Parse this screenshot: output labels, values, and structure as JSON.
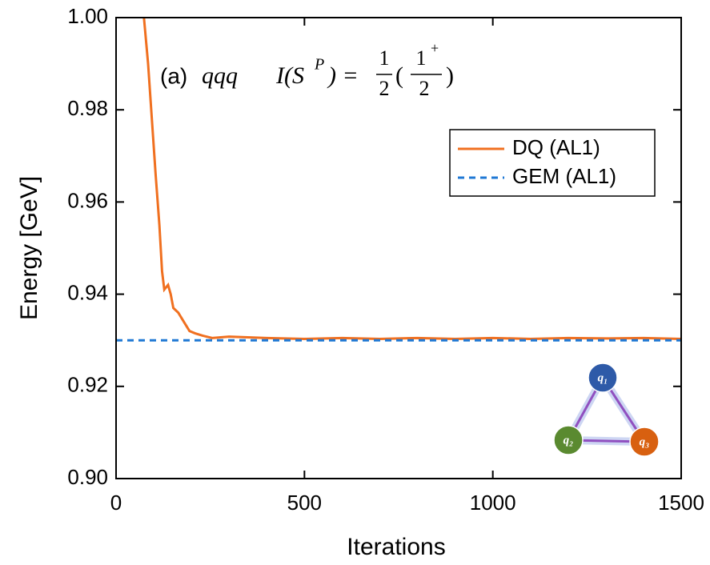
{
  "chart_data": {
    "type": "line",
    "annotation": {
      "panel": "(a)",
      "system": "qqq",
      "lhs": "I(S",
      "lhs_sup": "P",
      "lhs_close": ") =",
      "num1": "1",
      "den1": "2",
      "open": "(",
      "num2": "1",
      "num2_sup": "+",
      "den2": "2",
      "close": ")"
    },
    "xlabel": "Iterations",
    "ylabel": "Energy [GeV]",
    "xlim": [
      0,
      1500
    ],
    "ylim": [
      0.9,
      1.0
    ],
    "xticks": [
      0,
      500,
      1000,
      1500
    ],
    "yticks": [
      {
        "value": 0.9,
        "label": "0.90"
      },
      {
        "value": 0.92,
        "label": "0.92"
      },
      {
        "value": 0.94,
        "label": "0.94"
      },
      {
        "value": 0.96,
        "label": "0.96"
      },
      {
        "value": 0.98,
        "label": "0.98"
      },
      {
        "value": 1.0,
        "label": "1.00"
      }
    ],
    "legend": "upper right",
    "series": [
      {
        "name": "DQ (AL1)",
        "color": "#f07020",
        "style": "solid",
        "x": [
          74,
          85,
          95,
          105,
          115,
          122,
          128,
          138,
          145,
          152,
          165,
          180,
          195,
          210,
          230,
          255,
          300,
          400,
          500,
          600,
          700,
          800,
          900,
          1000,
          1100,
          1200,
          1300,
          1400,
          1500
        ],
        "values": [
          1.0,
          0.99,
          0.978,
          0.966,
          0.955,
          0.945,
          0.941,
          0.942,
          0.94,
          0.937,
          0.936,
          0.934,
          0.932,
          0.9315,
          0.931,
          0.9305,
          0.9308,
          0.9305,
          0.9303,
          0.9305,
          0.9303,
          0.9305,
          0.9303,
          0.9305,
          0.9303,
          0.9305,
          0.9304,
          0.9305,
          0.9303
        ]
      },
      {
        "name": "GEM (AL1)",
        "color": "#1f78d4",
        "style": "dashed",
        "x": [
          0,
          1500
        ],
        "values": [
          0.93,
          0.93
        ]
      }
    ],
    "inset": {
      "nodes": [
        {
          "label": "q₁",
          "color": "#2e5aa8"
        },
        {
          "label": "q₂",
          "color": "#5a8a30"
        },
        {
          "label": "q₃",
          "color": "#d86010"
        }
      ]
    }
  }
}
